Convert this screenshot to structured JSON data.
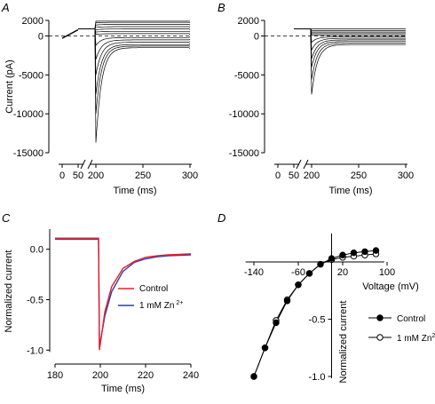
{
  "chart_data": [
    {
      "panel": "A",
      "type": "line",
      "xlabel": "Time (ms)",
      "ylabel": "Current (pA)",
      "xticks": [
        "0",
        "50",
        "200",
        "250",
        "300"
      ],
      "yticks": [
        "2000",
        "0",
        "-5000",
        "-10000",
        "-15000"
      ],
      "ylim": [
        -15000,
        2000
      ],
      "series": [
        {
          "t": [
            0,
            50
          ],
          "v": [
            -300,
            800
          ]
        },
        {
          "step": 1900,
          "final": 1900,
          "peak": 1900
        },
        {
          "step": 1700,
          "final": 1750,
          "peak": 1700
        },
        {
          "step": 1400,
          "final": 1500,
          "peak": 1400
        },
        {
          "step": 1100,
          "final": 1200,
          "peak": 1100
        },
        {
          "step": 800,
          "final": 900,
          "peak": 800
        },
        {
          "step": 500,
          "final": 600,
          "peak": 500
        },
        {
          "step": 200,
          "final": 300,
          "peak": 200
        },
        {
          "step": -100,
          "final": -200,
          "peak": -1200
        },
        {
          "step": -400,
          "final": -500,
          "peak": -3000
        },
        {
          "step": -700,
          "final": -800,
          "peak": -5000
        },
        {
          "step": -1000,
          "final": -1100,
          "peak": -7500
        },
        {
          "step": -1300,
          "final": -1300,
          "peak": -10000
        },
        {
          "step": -1600,
          "final": -1500,
          "peak": -13700
        }
      ]
    },
    {
      "panel": "B",
      "type": "line",
      "xlabel": "Time (ms)",
      "ylabel": "",
      "xticks": [
        "0",
        "50",
        "200",
        "250",
        "300"
      ],
      "yticks": [
        "2000",
        "0",
        "-5000",
        "-10000",
        "-15000"
      ],
      "ylim": [
        -15000,
        2000
      ],
      "series": [
        {
          "step": 900,
          "final": 900,
          "peak": 900
        },
        {
          "step": 700,
          "final": 700,
          "peak": 700
        },
        {
          "step": 500,
          "final": 500,
          "peak": 500
        },
        {
          "step": 300,
          "final": 300,
          "peak": 300
        },
        {
          "step": 100,
          "final": 100,
          "peak": 100
        },
        {
          "step": -100,
          "final": -100,
          "peak": -800
        },
        {
          "step": -300,
          "final": -300,
          "peak": -1800
        },
        {
          "step": -500,
          "final": -500,
          "peak": -2900
        },
        {
          "step": -700,
          "final": -700,
          "peak": -4000
        },
        {
          "step": -900,
          "final": -900,
          "peak": -5600
        },
        {
          "step": -1100,
          "final": -1100,
          "peak": -7500
        }
      ]
    },
    {
      "panel": "C",
      "type": "line",
      "xlabel": "Time (ms)",
      "ylabel": "Normalized current",
      "xticks": [
        "180",
        "200",
        "220",
        "240"
      ],
      "yticks": [
        "0.0",
        "-0.5",
        "-1.0"
      ],
      "xlim": [
        180,
        240
      ],
      "ylim": [
        -1.05,
        0.2
      ],
      "series": [
        {
          "name": "Control",
          "color": "#e8202a",
          "x": [
            180,
            199.2,
            199.6,
            202,
            205,
            210,
            215,
            220,
            225,
            230,
            235,
            240
          ],
          "y": [
            0.11,
            0.11,
            -1.0,
            -0.62,
            -0.37,
            -0.19,
            -0.12,
            -0.08,
            -0.065,
            -0.055,
            -0.05,
            -0.045
          ]
        },
        {
          "name": "1 mM Zn",
          "color": "#2a3fb0",
          "x": [
            180,
            199.2,
            199.6,
            202,
            205,
            210,
            215,
            220,
            225,
            230,
            235,
            240
          ],
          "y": [
            0.1,
            0.1,
            -0.97,
            -0.66,
            -0.42,
            -0.22,
            -0.13,
            -0.095,
            -0.075,
            -0.065,
            -0.06,
            -0.055
          ]
        }
      ]
    },
    {
      "panel": "D",
      "type": "line",
      "xlabel": "Voltage (mV)",
      "ylabel": "Normalized current",
      "xticks": [
        "-140",
        "-60",
        "20",
        "100"
      ],
      "yticks": [
        "-0.5",
        "-1.0"
      ],
      "xlim": [
        -160,
        100
      ],
      "ylim": [
        -1.05,
        0.12
      ],
      "series": [
        {
          "name": "Control",
          "marker": "filled",
          "x": [
            -140,
            -120,
            -100,
            -80,
            -60,
            -40,
            -20,
            0,
            20,
            40,
            60,
            80
          ],
          "y": [
            -1.0,
            -0.75,
            -0.53,
            -0.34,
            -0.2,
            -0.1,
            -0.02,
            0.03,
            0.06,
            0.08,
            0.09,
            0.1
          ]
        },
        {
          "name": "1 mM Zn",
          "marker": "open",
          "x": [
            -140,
            -120,
            -100,
            -80,
            -60,
            -40,
            -20,
            0,
            20,
            40,
            60,
            80
          ],
          "y": [
            -1.0,
            -0.75,
            -0.51,
            -0.33,
            -0.2,
            -0.1,
            -0.02,
            0.02,
            0.04,
            0.05,
            0.06,
            0.07
          ]
        }
      ]
    }
  ]
}
